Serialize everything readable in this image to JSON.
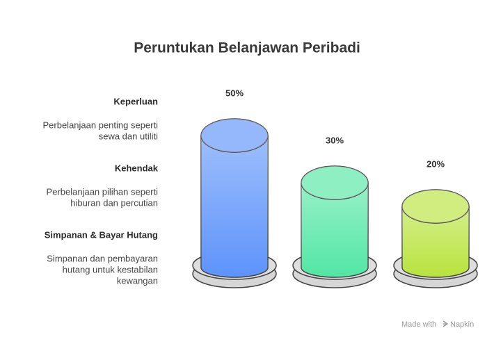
{
  "chart_data": {
    "type": "cylinder",
    "title": "Peruntukan Belanjawan Peribadi",
    "categories": [
      "Keperluan",
      "Kehendak",
      "Simpanan & Bayar Hutang"
    ],
    "descriptions": [
      [
        "Perbelanjaan penting seperti",
        "sewa dan utiliti"
      ],
      [
        "Perbelanjaan pilihan seperti",
        "hiburan dan percutian"
      ],
      [
        "Simpanan dan pembayaran",
        "hutang untuk kestabilan",
        "kewangan"
      ]
    ],
    "values": [
      50,
      30,
      20
    ],
    "value_labels": [
      "50%",
      "30%",
      "20%"
    ],
    "colors": [
      "#5d93fa",
      "#52e6a4",
      "#b8e33d"
    ]
  },
  "footer": {
    "prefix": "Made with",
    "brand": "Napkin"
  }
}
